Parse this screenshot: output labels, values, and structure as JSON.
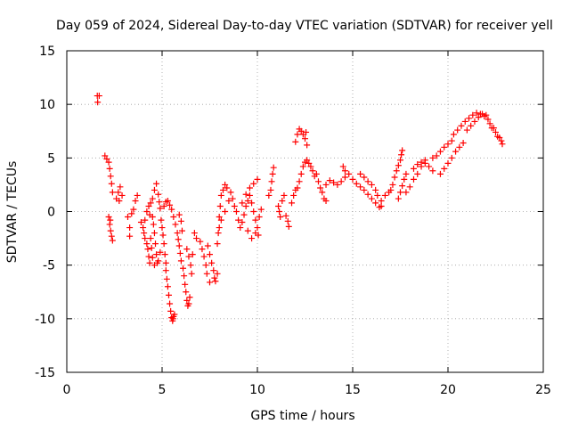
{
  "chart_data": {
    "type": "scatter",
    "title": "Day 059 of 2024, Sidereal Day-to-day VTEC variation (SDTVAR) for receiver yell",
    "xlabel": "GPS time / hours",
    "ylabel": "SDTVAR / TECUs",
    "xlim": [
      0,
      25
    ],
    "ylim": [
      -15,
      15
    ],
    "x_ticks": [
      "0",
      "5",
      "10",
      "15",
      "20",
      "25"
    ],
    "y_ticks": [
      "-15",
      "-10",
      "-5",
      "0",
      "5",
      "10",
      "15"
    ],
    "grid": true,
    "legend": "none",
    "marker": "+",
    "color": "#ff0000",
    "series": [
      {
        "points": [
          [
            1.6,
            10.8
          ],
          [
            1.62,
            10.2
          ],
          [
            1.7,
            10.8
          ],
          [
            2.0,
            5.2
          ],
          [
            2.1,
            4.9
          ],
          [
            2.2,
            4.6
          ],
          [
            2.25,
            4.0
          ],
          [
            2.3,
            3.3
          ],
          [
            2.35,
            2.6
          ],
          [
            2.4,
            1.8
          ],
          [
            2.2,
            -0.5
          ],
          [
            2.25,
            -1.2
          ],
          [
            2.3,
            -1.8
          ],
          [
            2.35,
            -2.3
          ],
          [
            2.4,
            -2.7
          ],
          [
            2.28,
            -0.8
          ],
          [
            2.6,
            1.2
          ],
          [
            2.7,
            1.8
          ],
          [
            2.8,
            2.3
          ],
          [
            2.9,
            1.5
          ],
          [
            2.75,
            1.0
          ],
          [
            3.2,
            -0.5
          ],
          [
            3.3,
            -1.5
          ],
          [
            3.3,
            -2.3
          ],
          [
            3.5,
            0.2
          ],
          [
            3.6,
            1.0
          ],
          [
            3.7,
            1.5
          ],
          [
            3.4,
            -0.2
          ],
          [
            3.9,
            -1.0
          ],
          [
            4.0,
            -1.5
          ],
          [
            4.05,
            -2.0
          ],
          [
            4.1,
            -2.5
          ],
          [
            4.2,
            -3.0
          ],
          [
            4.25,
            -3.5
          ],
          [
            4.3,
            -4.2
          ],
          [
            4.35,
            -4.8
          ],
          [
            4.1,
            -0.8
          ],
          [
            4.2,
            0.0
          ],
          [
            4.3,
            0.5
          ],
          [
            4.35,
            -0.3
          ],
          [
            4.4,
            0.8
          ],
          [
            4.5,
            -0.5
          ],
          [
            4.55,
            -1.2
          ],
          [
            4.6,
            -2.0
          ],
          [
            4.65,
            -3.0
          ],
          [
            4.7,
            -4.0
          ],
          [
            4.75,
            -4.8
          ],
          [
            4.5,
            1.2
          ],
          [
            4.6,
            2.0
          ],
          [
            4.7,
            2.6
          ],
          [
            4.8,
            1.6
          ],
          [
            4.85,
            0.9
          ],
          [
            4.9,
            0.3
          ],
          [
            4.4,
            -2.5
          ],
          [
            4.45,
            -3.4
          ],
          [
            4.5,
            -4.3
          ],
          [
            4.6,
            -5.0
          ],
          [
            4.8,
            -4.6
          ],
          [
            4.9,
            -3.8
          ],
          [
            4.95,
            -0.8
          ],
          [
            5.0,
            -1.5
          ],
          [
            5.05,
            -2.2
          ],
          [
            5.1,
            -3.0
          ],
          [
            5.15,
            -4.0
          ],
          [
            5.2,
            -4.8
          ],
          [
            5.2,
            -5.5
          ],
          [
            5.25,
            -6.3
          ],
          [
            5.3,
            -7.0
          ],
          [
            5.35,
            -7.8
          ],
          [
            5.4,
            -8.6
          ],
          [
            5.45,
            -9.3
          ],
          [
            5.5,
            -9.9
          ],
          [
            5.55,
            -10.2
          ],
          [
            5.6,
            -9.8
          ],
          [
            5.65,
            -9.6
          ],
          [
            5.58,
            -10.0
          ],
          [
            5.1,
            0.5
          ],
          [
            5.2,
            0.9
          ],
          [
            5.3,
            1.0
          ],
          [
            5.4,
            0.6
          ],
          [
            5.5,
            0.2
          ],
          [
            5.6,
            -0.5
          ],
          [
            5.7,
            -1.2
          ],
          [
            5.8,
            -2.0
          ],
          [
            5.85,
            -2.6
          ],
          [
            5.9,
            -3.2
          ],
          [
            5.95,
            -3.9
          ],
          [
            6.0,
            -4.6
          ],
          [
            5.9,
            -0.3
          ],
          [
            6.0,
            -0.9
          ],
          [
            6.05,
            -1.8
          ],
          [
            6.1,
            -5.3
          ],
          [
            6.15,
            -6.0
          ],
          [
            6.2,
            -6.8
          ],
          [
            6.25,
            -7.5
          ],
          [
            6.3,
            -8.3
          ],
          [
            6.35,
            -8.8
          ],
          [
            6.4,
            -8.6
          ],
          [
            6.45,
            -8.0
          ],
          [
            6.3,
            -3.5
          ],
          [
            6.4,
            -4.2
          ],
          [
            6.5,
            -5.0
          ],
          [
            6.55,
            -5.8
          ],
          [
            6.6,
            -4.0
          ],
          [
            6.7,
            -2.0
          ],
          [
            6.8,
            -2.5
          ],
          [
            7.0,
            -2.8
          ],
          [
            7.1,
            -3.5
          ],
          [
            7.2,
            -4.2
          ],
          [
            7.3,
            -5.0
          ],
          [
            7.35,
            -5.8
          ],
          [
            7.5,
            -6.6
          ],
          [
            7.4,
            -3.2
          ],
          [
            7.5,
            -4.0
          ],
          [
            7.6,
            -4.8
          ],
          [
            7.7,
            -5.5
          ],
          [
            7.75,
            -6.2
          ],
          [
            7.8,
            -6.5
          ],
          [
            7.9,
            -5.8
          ],
          [
            7.9,
            -3.0
          ],
          [
            7.95,
            -2.0
          ],
          [
            8.0,
            -0.5
          ],
          [
            8.05,
            0.5
          ],
          [
            8.1,
            1.5
          ],
          [
            8.2,
            2.0
          ],
          [
            8.3,
            2.5
          ],
          [
            8.4,
            2.2
          ],
          [
            8.0,
            -1.5
          ],
          [
            8.1,
            -0.8
          ],
          [
            8.3,
            0.0
          ],
          [
            8.5,
            1.0
          ],
          [
            8.6,
            1.8
          ],
          [
            8.7,
            1.2
          ],
          [
            8.8,
            0.5
          ],
          [
            8.9,
            0.0
          ],
          [
            9.0,
            -0.8
          ],
          [
            9.1,
            -1.5
          ],
          [
            9.2,
            -1.0
          ],
          [
            9.3,
            -0.3
          ],
          [
            9.4,
            0.5
          ],
          [
            9.5,
            1.0
          ],
          [
            9.6,
            1.5
          ],
          [
            9.7,
            0.8
          ],
          [
            9.8,
            0.0
          ],
          [
            9.9,
            -0.8
          ],
          [
            10.0,
            -1.5
          ],
          [
            10.05,
            -2.2
          ],
          [
            9.2,
            0.8
          ],
          [
            9.4,
            1.6
          ],
          [
            9.6,
            2.2
          ],
          [
            9.8,
            2.6
          ],
          [
            10.0,
            3.0
          ],
          [
            9.5,
            -1.8
          ],
          [
            9.7,
            -2.5
          ],
          [
            9.9,
            -2.0
          ],
          [
            10.1,
            -0.5
          ],
          [
            10.2,
            0.2
          ],
          [
            10.6,
            1.5
          ],
          [
            10.7,
            2.0
          ],
          [
            10.75,
            2.8
          ],
          [
            10.8,
            3.5
          ],
          [
            10.85,
            4.1
          ],
          [
            11.1,
            0.5
          ],
          [
            11.15,
            0.0
          ],
          [
            11.2,
            -0.5
          ],
          [
            11.3,
            1.0
          ],
          [
            11.4,
            1.5
          ],
          [
            11.5,
            -0.4
          ],
          [
            11.6,
            -0.9
          ],
          [
            11.65,
            -1.4
          ],
          [
            11.8,
            0.8
          ],
          [
            11.9,
            1.5
          ],
          [
            12.0,
            2.0
          ],
          [
            12.1,
            2.2
          ],
          [
            12.2,
            2.8
          ],
          [
            12.3,
            3.5
          ],
          [
            12.0,
            6.5
          ],
          [
            12.1,
            7.2
          ],
          [
            12.2,
            7.7
          ],
          [
            12.3,
            7.5
          ],
          [
            12.4,
            7.2
          ],
          [
            12.5,
            6.8
          ],
          [
            12.6,
            6.2
          ],
          [
            12.55,
            7.4
          ],
          [
            12.4,
            4.2
          ],
          [
            12.5,
            4.6
          ],
          [
            12.6,
            4.8
          ],
          [
            12.7,
            4.5
          ],
          [
            12.8,
            4.2
          ],
          [
            12.9,
            3.8
          ],
          [
            13.0,
            3.3
          ],
          [
            13.1,
            3.5
          ],
          [
            13.2,
            2.8
          ],
          [
            13.3,
            2.2
          ],
          [
            13.4,
            1.8
          ],
          [
            13.5,
            1.2
          ],
          [
            13.6,
            1.0
          ],
          [
            13.6,
            2.5
          ],
          [
            13.8,
            2.9
          ],
          [
            14.0,
            2.7
          ],
          [
            14.2,
            2.5
          ],
          [
            14.4,
            2.8
          ],
          [
            14.6,
            3.2
          ],
          [
            14.5,
            4.2
          ],
          [
            14.6,
            3.8
          ],
          [
            14.8,
            3.5
          ],
          [
            15.0,
            3.0
          ],
          [
            15.2,
            2.6
          ],
          [
            15.4,
            2.3
          ],
          [
            15.4,
            3.5
          ],
          [
            15.6,
            3.2
          ],
          [
            15.8,
            2.8
          ],
          [
            16.0,
            2.5
          ],
          [
            16.2,
            2.0
          ],
          [
            16.3,
            1.5
          ],
          [
            15.6,
            2.0
          ],
          [
            15.8,
            1.6
          ],
          [
            16.0,
            1.2
          ],
          [
            16.2,
            0.8
          ],
          [
            16.4,
            0.4
          ],
          [
            16.5,
            0.5
          ],
          [
            16.5,
            1.0
          ],
          [
            16.7,
            1.5
          ],
          [
            16.9,
            1.8
          ],
          [
            17.0,
            2.0
          ],
          [
            17.1,
            2.5
          ],
          [
            17.2,
            3.2
          ],
          [
            17.3,
            3.8
          ],
          [
            17.4,
            4.3
          ],
          [
            17.5,
            4.8
          ],
          [
            17.55,
            5.3
          ],
          [
            17.6,
            5.7
          ],
          [
            17.4,
            1.2
          ],
          [
            17.5,
            1.8
          ],
          [
            17.6,
            2.4
          ],
          [
            17.7,
            3.0
          ],
          [
            17.8,
            3.5
          ],
          [
            17.8,
            1.8
          ],
          [
            18.0,
            2.3
          ],
          [
            18.2,
            3.0
          ],
          [
            18.4,
            3.5
          ],
          [
            18.6,
            4.2
          ],
          [
            18.8,
            4.8
          ],
          [
            18.2,
            4.0
          ],
          [
            18.4,
            4.4
          ],
          [
            18.6,
            4.6
          ],
          [
            18.8,
            4.5
          ],
          [
            19.0,
            4.2
          ],
          [
            19.2,
            3.8
          ],
          [
            19.2,
            5.0
          ],
          [
            19.4,
            5.2
          ],
          [
            19.6,
            5.6
          ],
          [
            19.8,
            6.0
          ],
          [
            20.0,
            6.3
          ],
          [
            20.2,
            6.6
          ],
          [
            19.6,
            3.5
          ],
          [
            19.8,
            4.0
          ],
          [
            20.0,
            4.5
          ],
          [
            20.2,
            5.0
          ],
          [
            20.4,
            5.6
          ],
          [
            20.6,
            6.0
          ],
          [
            20.8,
            6.4
          ],
          [
            20.3,
            7.2
          ],
          [
            20.5,
            7.6
          ],
          [
            20.7,
            8.0
          ],
          [
            20.9,
            8.4
          ],
          [
            21.1,
            8.7
          ],
          [
            21.3,
            9.0
          ],
          [
            21.0,
            7.6
          ],
          [
            21.2,
            8.0
          ],
          [
            21.4,
            8.4
          ],
          [
            21.6,
            8.8
          ],
          [
            21.8,
            9.1
          ],
          [
            22.0,
            9.0
          ],
          [
            21.5,
            9.2
          ],
          [
            21.7,
            9.1
          ],
          [
            21.9,
            8.9
          ],
          [
            22.1,
            8.6
          ],
          [
            22.2,
            8.2
          ],
          [
            22.3,
            7.8
          ],
          [
            22.4,
            7.8
          ],
          [
            22.5,
            7.4
          ],
          [
            22.6,
            7.0
          ],
          [
            22.7,
            6.9
          ],
          [
            22.8,
            6.6
          ],
          [
            22.85,
            6.3
          ]
        ]
      }
    ]
  }
}
